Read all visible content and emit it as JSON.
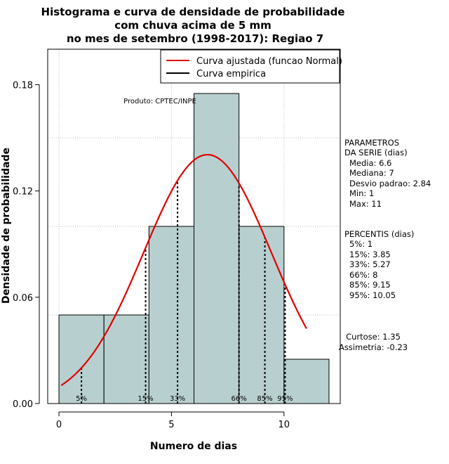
{
  "chart_data": {
    "type": "bar",
    "title_lines": [
      "Histograma e curva de densidade de probabilidade",
      "com chuva acima de 5 mm",
      "no mes de setembro (1998-2017): Regiao 7"
    ],
    "xlabel": "Numero de dias",
    "ylabel": "Densidade de probabilidade",
    "xlim": [
      -0.5,
      12.5
    ],
    "ylim": [
      0,
      0.2
    ],
    "xticks": [
      0,
      5,
      10
    ],
    "yticks": [
      0.0,
      0.06,
      0.12,
      0.18
    ],
    "ytick_labels": [
      "0.00",
      "0.06",
      "0.12",
      "0.18"
    ],
    "grid": true,
    "bins": [
      {
        "x0": 0,
        "x1": 2,
        "density": 0.05
      },
      {
        "x0": 2,
        "x1": 4,
        "density": 0.05
      },
      {
        "x0": 4,
        "x1": 6,
        "density": 0.1
      },
      {
        "x0": 6,
        "x1": 8,
        "density": 0.175
      },
      {
        "x0": 8,
        "x1": 10,
        "density": 0.1
      },
      {
        "x0": 10,
        "x1": 12,
        "density": 0.025
      }
    ],
    "bar_color": "#b8cfcf",
    "fitted_curve": {
      "name": "Curva ajustada (funcao Normal)",
      "color": "#e00000",
      "mean": 6.6,
      "sd": 2.84,
      "x_range": [
        0.1,
        11
      ]
    },
    "empirical_curve": {
      "name": "Curva empirica",
      "color": "#000000"
    },
    "legend_position": "top-right",
    "percentile_lines": [
      {
        "label": "5%",
        "x": 1
      },
      {
        "label": "15%",
        "x": 3.85
      },
      {
        "label": "33%",
        "x": 5.27
      },
      {
        "label": "66%",
        "x": 8
      },
      {
        "label": "85%",
        "x": 9.15
      },
      {
        "label": "95%",
        "x": 10.05
      }
    ],
    "annotation": "Produto: CPTEC/INPE"
  },
  "side_panel": {
    "parametros_lines": [
      "PARAMETROS",
      "DA SERIE (dias)",
      "Media: 6.6",
      "Mediana: 7",
      "Desvio padrao: 2.84",
      "Min: 1",
      "Max: 11"
    ],
    "percentis_lines": [
      "PERCENTIS (dias)",
      "5%: 1",
      "15%: 3.85",
      "33%: 5.27",
      "66%: 8",
      "85%: 9.15",
      "95%: 10.05"
    ],
    "curtose": "Curtose: 1.35",
    "assimetria": "Assimetria: -0.23"
  }
}
